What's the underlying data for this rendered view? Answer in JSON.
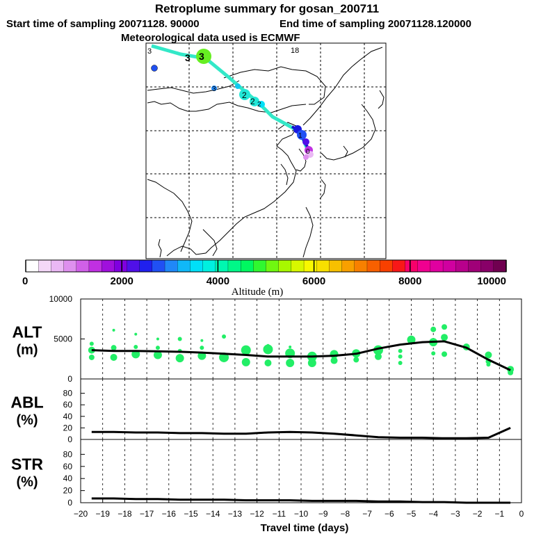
{
  "header": {
    "title": "Retroplume summary for gosan_200711",
    "start_label": "Start time of sampling 20071128. 90000",
    "end_label": "End time of sampling 20071128.120000",
    "met_label": "Meteorological data used is ECMWF"
  },
  "map": {
    "corner_labels": [
      "3",
      "18"
    ],
    "plume_labels": [
      "3",
      "3",
      "3",
      "2",
      "2",
      "2",
      "1",
      "0"
    ]
  },
  "colorbar": {
    "tick_labels": [
      "0",
      "2000",
      "4000",
      "6000",
      "8000",
      "10000"
    ],
    "label": "Altitude (m)",
    "colors": [
      "#ffffff",
      "#f4d8f8",
      "#eab8f4",
      "#de90ee",
      "#d060e8",
      "#c030e2",
      "#a010dc",
      "#8000e0",
      "#5010e8",
      "#2020ee",
      "#2050f4",
      "#2088f8",
      "#10b8f8",
      "#00e0f8",
      "#00f0e0",
      "#00f8b0",
      "#00f888",
      "#00f860",
      "#30f830",
      "#70f810",
      "#a8f800",
      "#d8f800",
      "#f8f800",
      "#f8e000",
      "#f8c000",
      "#f8a000",
      "#f88000",
      "#f86000",
      "#f84000",
      "#f81818",
      "#f8006a",
      "#f00090",
      "#e000a0",
      "#d000a0",
      "#b8008c",
      "#a00078",
      "#880068",
      "#700050"
    ]
  },
  "chart_data": [
    {
      "type": "line",
      "name": "ALT",
      "ylabel": "ALT (m)",
      "ylabel_lines": [
        "ALT",
        "(m)"
      ],
      "ylim": [
        0,
        10000
      ],
      "yticks": [
        0,
        5000,
        10000
      ],
      "ytick_labels": [
        "0",
        "5000",
        "10000"
      ],
      "x": [
        -19.5,
        -18.5,
        -17.5,
        -16.5,
        -15.5,
        -14.5,
        -13.5,
        -12.5,
        -11.5,
        -10.5,
        -9.5,
        -8.5,
        -7.5,
        -6.5,
        -5.5,
        -4.5,
        -3.5,
        -2.5,
        -1.5,
        -0.5
      ],
      "values": [
        3600,
        3500,
        3500,
        3450,
        3400,
        3300,
        3150,
        3000,
        2800,
        2800,
        2800,
        2900,
        3150,
        3800,
        4300,
        4600,
        4700,
        3900,
        2400,
        1100
      ],
      "scatter_color": "#22ee66",
      "scatter": [
        {
          "x": -19.5,
          "y": 4400,
          "s": 3
        },
        {
          "x": -19.5,
          "y": 3600,
          "s": 5
        },
        {
          "x": -19.5,
          "y": 2700,
          "s": 4
        },
        {
          "x": -18.5,
          "y": 6100,
          "s": 2
        },
        {
          "x": -18.5,
          "y": 3900,
          "s": 4
        },
        {
          "x": -18.5,
          "y": 2700,
          "s": 5
        },
        {
          "x": -17.5,
          "y": 5600,
          "s": 2
        },
        {
          "x": -17.5,
          "y": 4000,
          "s": 3
        },
        {
          "x": -17.5,
          "y": 3100,
          "s": 6
        },
        {
          "x": -16.5,
          "y": 5000,
          "s": 2
        },
        {
          "x": -16.5,
          "y": 3900,
          "s": 3
        },
        {
          "x": -16.5,
          "y": 3000,
          "s": 6
        },
        {
          "x": -15.5,
          "y": 5000,
          "s": 3
        },
        {
          "x": -15.5,
          "y": 3500,
          "s": 3
        },
        {
          "x": -15.5,
          "y": 2600,
          "s": 6
        },
        {
          "x": -14.5,
          "y": 4800,
          "s": 2
        },
        {
          "x": -14.5,
          "y": 3900,
          "s": 3
        },
        {
          "x": -14.5,
          "y": 2900,
          "s": 6
        },
        {
          "x": -13.5,
          "y": 5300,
          "s": 3
        },
        {
          "x": -13.5,
          "y": 2700,
          "s": 7
        },
        {
          "x": -12.5,
          "y": 3600,
          "s": 7
        },
        {
          "x": -12.5,
          "y": 2100,
          "s": 6
        },
        {
          "x": -11.5,
          "y": 4200,
          "s": 2
        },
        {
          "x": -11.5,
          "y": 3700,
          "s": 7
        },
        {
          "x": -11.5,
          "y": 2000,
          "s": 5
        },
        {
          "x": -10.5,
          "y": 4000,
          "s": 2
        },
        {
          "x": -10.5,
          "y": 3200,
          "s": 7
        },
        {
          "x": -10.5,
          "y": 2000,
          "s": 6
        },
        {
          "x": -9.5,
          "y": 2800,
          "s": 7
        },
        {
          "x": -9.5,
          "y": 2000,
          "s": 6
        },
        {
          "x": -8.5,
          "y": 3100,
          "s": 6
        },
        {
          "x": -8.5,
          "y": 2300,
          "s": 5
        },
        {
          "x": -7.5,
          "y": 3200,
          "s": 6
        },
        {
          "x": -7.5,
          "y": 2400,
          "s": 4
        },
        {
          "x": -6.5,
          "y": 3600,
          "s": 7
        },
        {
          "x": -6.5,
          "y": 2800,
          "s": 5
        },
        {
          "x": -5.5,
          "y": 3500,
          "s": 3
        },
        {
          "x": -5.5,
          "y": 2800,
          "s": 3
        },
        {
          "x": -5.5,
          "y": 2000,
          "s": 3
        },
        {
          "x": -5.0,
          "y": 4900,
          "s": 6
        },
        {
          "x": -4.0,
          "y": 6200,
          "s": 4
        },
        {
          "x": -4.0,
          "y": 4600,
          "s": 6
        },
        {
          "x": -4.0,
          "y": 3200,
          "s": 3
        },
        {
          "x": -3.5,
          "y": 6500,
          "s": 4
        },
        {
          "x": -3.5,
          "y": 5200,
          "s": 5
        },
        {
          "x": -3.5,
          "y": 3100,
          "s": 4
        },
        {
          "x": -2.5,
          "y": 4000,
          "s": 5
        },
        {
          "x": -1.5,
          "y": 3000,
          "s": 5
        },
        {
          "x": -1.5,
          "y": 2200,
          "s": 4
        },
        {
          "x": -1.5,
          "y": 1800,
          "s": 3
        },
        {
          "x": -0.5,
          "y": 1200,
          "s": 5
        },
        {
          "x": -0.5,
          "y": 800,
          "s": 4
        }
      ]
    },
    {
      "type": "line",
      "name": "ABL",
      "ylabel": "ABL (%)",
      "ylabel_lines": [
        "ABL",
        "(%)"
      ],
      "ylim": [
        0,
        100
      ],
      "yticks": [
        0,
        20,
        40,
        60,
        80
      ],
      "ytick_labels": [
        "0",
        "20",
        "40",
        "60",
        "80"
      ],
      "x": [
        -19.5,
        -18.5,
        -17.5,
        -16.5,
        -15.5,
        -14.5,
        -13.5,
        -12.5,
        -11.5,
        -10.5,
        -9.5,
        -8.5,
        -7.5,
        -6.5,
        -5.5,
        -4.5,
        -3.5,
        -2.5,
        -1.5,
        -0.5
      ],
      "values": [
        13,
        13,
        12,
        12,
        11,
        11,
        10,
        10,
        12,
        13,
        12,
        10,
        7,
        4,
        3,
        3,
        2,
        2,
        3,
        20
      ]
    },
    {
      "type": "line",
      "name": "STR",
      "ylabel": "STR (%)",
      "ylabel_lines": [
        "STR",
        "(%)"
      ],
      "ylim": [
        0,
        100
      ],
      "yticks": [
        0,
        20,
        40,
        60,
        80
      ],
      "ytick_labels": [
        "0",
        "20",
        "40",
        "60",
        "80"
      ],
      "x": [
        -19.5,
        -18.5,
        -17.5,
        -16.5,
        -15.5,
        -14.5,
        -13.5,
        -12.5,
        -11.5,
        -10.5,
        -9.5,
        -8.5,
        -7.5,
        -6.5,
        -5.5,
        -4.5,
        -3.5,
        -2.5,
        -1.5,
        -0.5
      ],
      "values": [
        7,
        7,
        6,
        6,
        5,
        5,
        5,
        4,
        4,
        4,
        3,
        3,
        3,
        2,
        2,
        1,
        1,
        0,
        0,
        0
      ]
    }
  ],
  "xaxis": {
    "xlabel": "Travel time (days)",
    "xlim": [
      -20,
      0
    ],
    "ticks": [
      -20,
      -19,
      -18,
      -17,
      -16,
      -15,
      -14,
      -13,
      -12,
      -11,
      -10,
      -9,
      -8,
      -7,
      -6,
      -5,
      -4,
      -3,
      -2,
      -1,
      0
    ],
    "tick_labels": [
      "−20",
      "−19",
      "−18",
      "−17",
      "−16",
      "−15",
      "−14",
      "−13",
      "−12",
      "−11",
      "−10",
      "−9",
      "−8",
      "−7",
      "−6",
      "−5",
      "−4",
      "−3",
      "−2",
      "−1",
      "0"
    ]
  }
}
